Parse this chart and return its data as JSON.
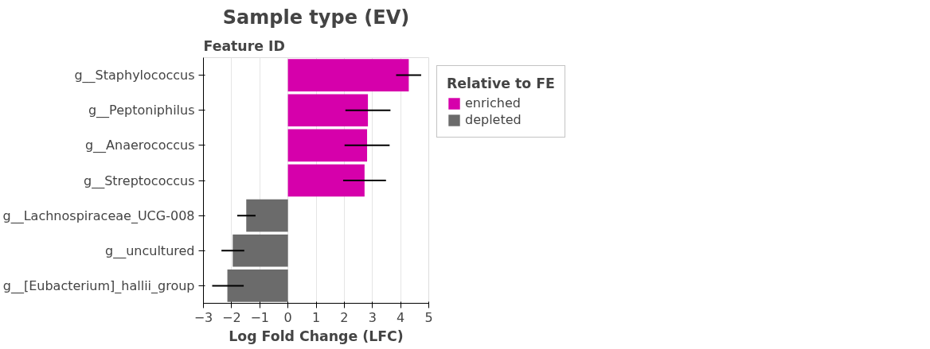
{
  "chart_data": {
    "type": "bar",
    "orientation": "horizontal",
    "title": "Sample type (EV)",
    "xlabel": "Log Fold Change (LFC)",
    "ylabel": "Feature ID",
    "legend_title": "Relative to FE",
    "categories": [
      "g__Staphylococcus",
      "g__Peptoniphilus",
      "g__Anaerococcus",
      "g__Streptococcus",
      "g__Lachnospiraceae_UCG-008",
      "g__uncultured",
      "g__[Eubacterium]_hallii_group"
    ],
    "series": [
      {
        "name": "enriched",
        "color": "#d600ab",
        "values": [
          4.29,
          2.84,
          2.81,
          2.72,
          null,
          null,
          null
        ],
        "errors": [
          [
            3.84,
            4.73
          ],
          [
            2.04,
            3.64
          ],
          [
            2.01,
            3.61
          ],
          [
            1.96,
            3.48
          ],
          null,
          null,
          null
        ]
      },
      {
        "name": "depleted",
        "color": "#6b6b6b",
        "values": [
          null,
          null,
          null,
          null,
          -1.48,
          -1.96,
          -2.15
        ],
        "errors": [
          null,
          null,
          null,
          null,
          [
            -1.8,
            -1.15
          ],
          [
            -2.36,
            -1.55
          ],
          [
            -2.69,
            -1.57
          ]
        ]
      }
    ],
    "xlim": [
      -3,
      5
    ],
    "xticks": [
      {
        "value": -3,
        "label": "−3"
      },
      {
        "value": -2,
        "label": "−2"
      },
      {
        "value": -1,
        "label": "−1"
      },
      0,
      1,
      2,
      3,
      4,
      5
    ],
    "grid": "x",
    "legend": "right"
  }
}
